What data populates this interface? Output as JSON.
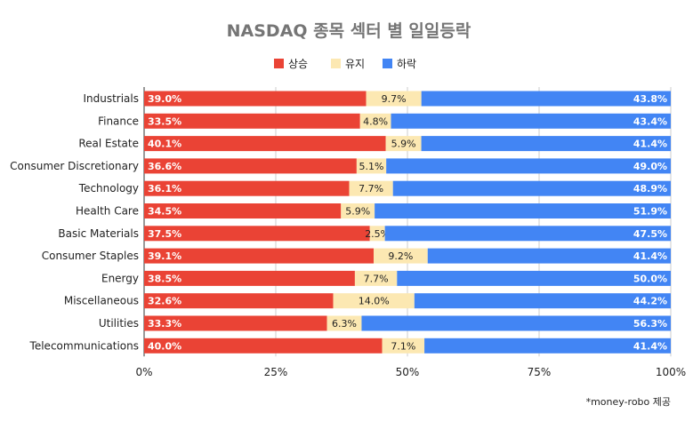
{
  "title": "NASDAQ 종목 섹터 별 일일등락",
  "source_note": "*money-robo 제공",
  "colors": {
    "up": "#EA4335",
    "flat": "#FCE8B2",
    "down": "#4285F4"
  },
  "chart_data": {
    "type": "bar",
    "orientation": "horizontal",
    "stacked": true,
    "normalized": true,
    "title": "NASDAQ 종목 섹터 별 일일등락",
    "categories": [
      "Industrials",
      "Finance",
      "Real Estate",
      "Consumer Discretionary",
      "Technology",
      "Health Care",
      "Basic Materials",
      "Consumer Staples",
      "Energy",
      "Miscellaneous",
      "Utilities",
      "Telecommunications"
    ],
    "series": [
      {
        "name": "상승",
        "color": "#EA4335",
        "values": [
          39.0,
          33.5,
          40.1,
          36.6,
          36.1,
          34.5,
          37.5,
          39.1,
          38.5,
          32.6,
          33.3,
          40.0
        ]
      },
      {
        "name": "유지",
        "color": "#FCE8B2",
        "values": [
          9.7,
          4.8,
          5.9,
          5.1,
          7.7,
          5.9,
          2.5,
          9.2,
          7.7,
          14.0,
          6.3,
          7.1
        ]
      },
      {
        "name": "하락",
        "color": "#4285F4",
        "values": [
          43.8,
          43.4,
          41.4,
          49.0,
          48.9,
          51.9,
          47.5,
          41.4,
          50.0,
          44.2,
          56.3,
          41.4
        ]
      }
    ],
    "x_ticks": [
      "0%",
      "25%",
      "50%",
      "75%",
      "100%"
    ],
    "xlim": [
      0,
      100
    ],
    "legend_position": "top",
    "grid": true
  }
}
